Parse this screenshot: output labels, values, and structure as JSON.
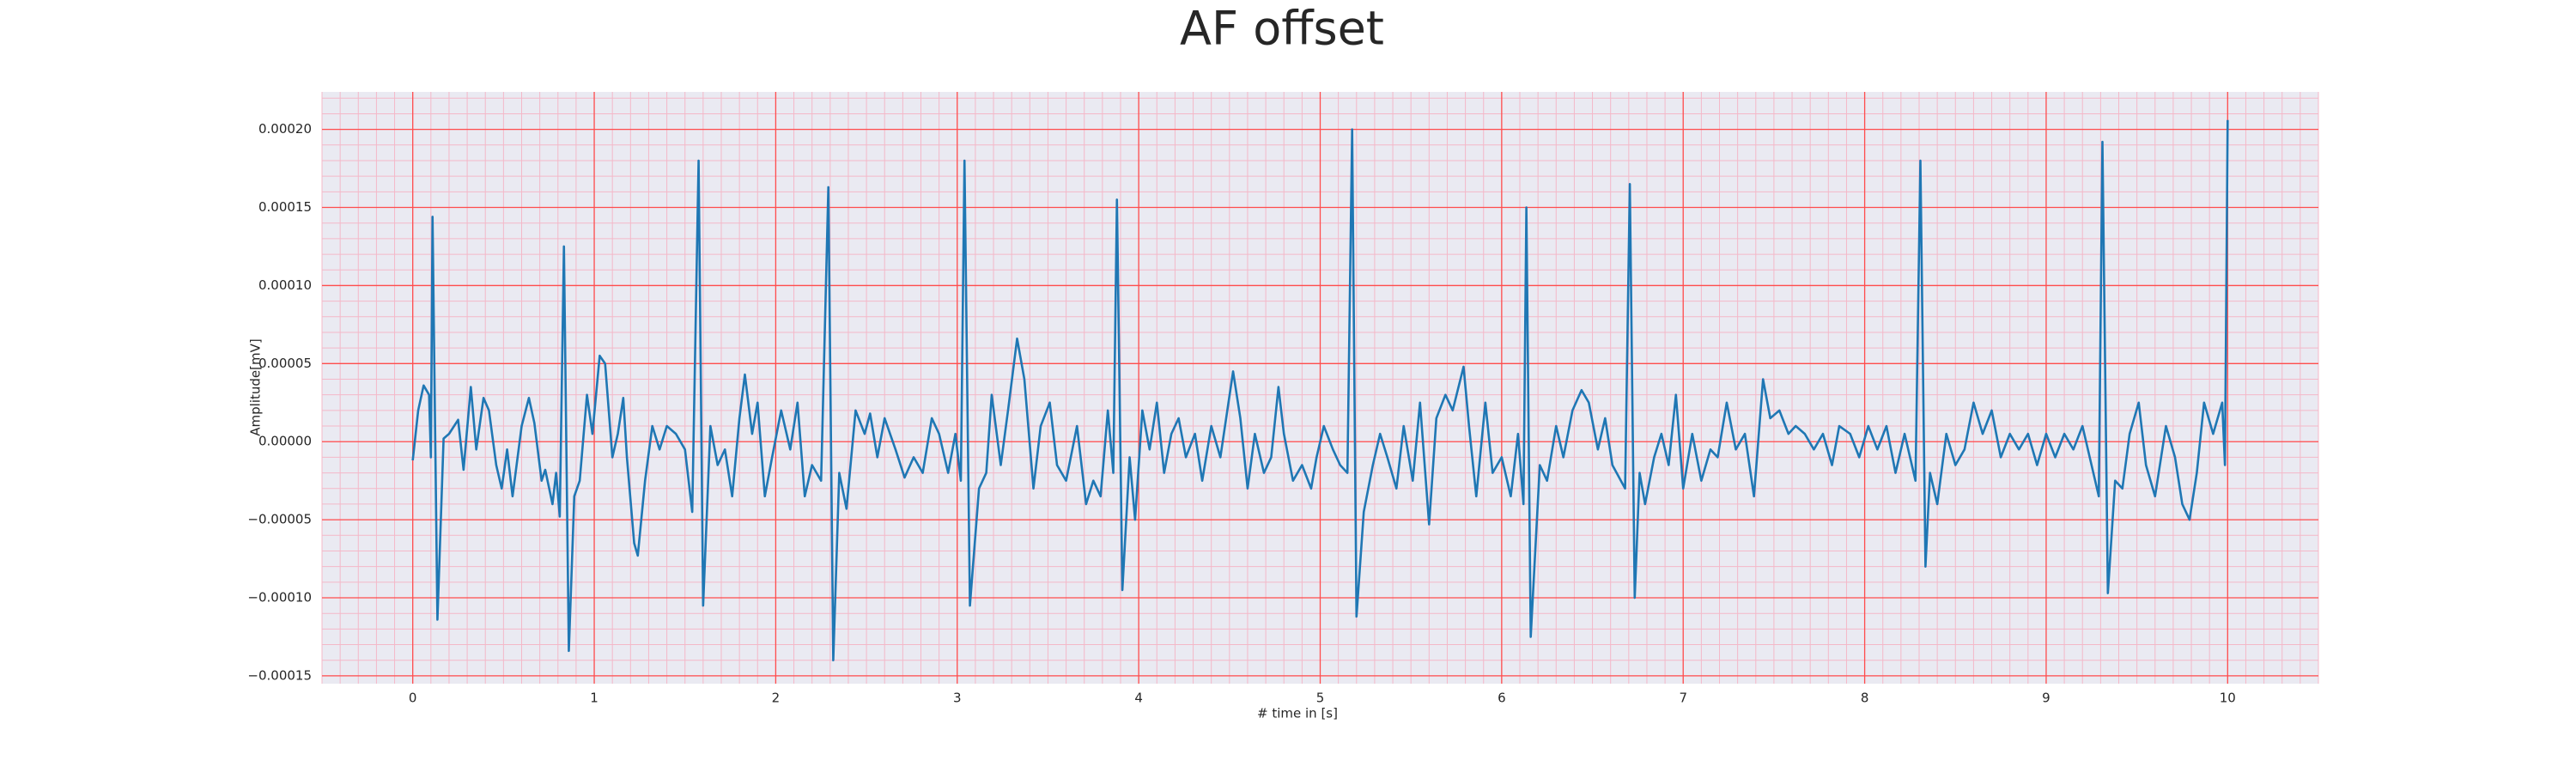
{
  "chart_data": {
    "type": "line",
    "title": "AF offset",
    "x_label": "# time in [s]",
    "y_label": "Amplitude[mV]",
    "color": "#1f77b4",
    "grid": true,
    "grid_color": "#ff4d4d",
    "minor_grid_color": "#f4b8c8",
    "xminor_step": 0.1,
    "yminor_step": 1e-05,
    "xlim": [
      -0.5,
      10.5
    ],
    "ylim": [
      -0.000155,
      0.000224
    ],
    "xticks": [
      0,
      1,
      2,
      3,
      4,
      5,
      6,
      7,
      8,
      9,
      10
    ],
    "yticks": [
      {
        "value": -0.00015,
        "label": "−0.00015"
      },
      {
        "value": -0.0001,
        "label": "−0.00010"
      },
      {
        "value": -5e-05,
        "label": "−0.00005"
      },
      {
        "value": 0,
        "label": "0.00000"
      },
      {
        "value": 5e-05,
        "label": "0.00005"
      },
      {
        "value": 0.0001,
        "label": "0.00010"
      },
      {
        "value": 0.00015,
        "label": "0.00015"
      },
      {
        "value": 0.0002,
        "label": "0.00020"
      }
    ],
    "x": [
      0,
      0.03,
      0.06,
      0.09,
      0.1,
      0.109,
      0.136,
      0.17,
      0.2,
      0.25,
      0.28,
      0.32,
      0.35,
      0.39,
      0.42,
      0.46,
      0.49,
      0.52,
      0.55,
      0.6,
      0.64,
      0.67,
      0.71,
      0.73,
      0.77,
      0.79,
      0.81,
      0.833,
      0.86,
      0.89,
      0.92,
      0.96,
      0.99,
      1.03,
      1.06,
      1.1,
      1.13,
      1.16,
      1.18,
      1.22,
      1.24,
      1.28,
      1.32,
      1.36,
      1.4,
      1.45,
      1.5,
      1.54,
      1.575,
      1.6,
      1.64,
      1.68,
      1.72,
      1.76,
      1.8,
      1.83,
      1.87,
      1.9,
      1.94,
      1.98,
      2.03,
      2.08,
      2.12,
      2.16,
      2.2,
      2.25,
      2.29,
      2.317,
      2.35,
      2.39,
      2.44,
      2.49,
      2.52,
      2.56,
      2.6,
      2.66,
      2.71,
      2.76,
      2.81,
      2.86,
      2.9,
      2.95,
      2.99,
      3.02,
      3.04,
      3.07,
      3.12,
      3.16,
      3.19,
      3.24,
      3.28,
      3.33,
      3.37,
      3.42,
      3.46,
      3.51,
      3.55,
      3.6,
      3.66,
      3.71,
      3.75,
      3.79,
      3.83,
      3.86,
      3.88,
      3.91,
      3.95,
      3.98,
      4.02,
      4.06,
      4.1,
      4.14,
      4.18,
      4.22,
      4.26,
      4.31,
      4.35,
      4.4,
      4.45,
      4.52,
      4.56,
      4.6,
      4.64,
      4.69,
      4.73,
      4.77,
      4.8,
      4.85,
      4.9,
      4.95,
      4.98,
      5.02,
      5.07,
      5.11,
      5.15,
      5.176,
      5.2,
      5.24,
      5.29,
      5.33,
      5.37,
      5.42,
      5.46,
      5.51,
      5.55,
      5.6,
      5.64,
      5.69,
      5.73,
      5.79,
      5.82,
      5.86,
      5.91,
      5.95,
      6.0,
      6.05,
      6.09,
      6.12,
      6.136,
      6.16,
      6.21,
      6.25,
      6.3,
      6.34,
      6.39,
      6.44,
      6.48,
      6.53,
      6.57,
      6.61,
      6.68,
      6.706,
      6.733,
      6.76,
      6.79,
      6.84,
      6.88,
      6.92,
      6.96,
      7.0,
      7.05,
      7.1,
      7.15,
      7.19,
      7.24,
      7.29,
      7.34,
      7.39,
      7.44,
      7.48,
      7.53,
      7.58,
      7.62,
      7.67,
      7.72,
      7.77,
      7.82,
      7.86,
      7.92,
      7.97,
      8.02,
      8.07,
      8.12,
      8.17,
      8.22,
      8.28,
      8.307,
      8.335,
      8.36,
      8.4,
      8.45,
      8.5,
      8.55,
      8.6,
      8.65,
      8.7,
      8.75,
      8.8,
      8.85,
      8.9,
      8.95,
      9.0,
      9.05,
      9.1,
      9.15,
      9.2,
      9.25,
      9.29,
      9.31,
      9.34,
      9.38,
      9.42,
      9.46,
      9.51,
      9.55,
      9.6,
      9.66,
      9.71,
      9.75,
      9.79,
      9.83,
      9.87,
      9.92,
      9.97,
      9.985,
      10.0
    ],
    "values": [
      -1.2e-05,
      2e-05,
      3.6e-05,
      3e-05,
      -1e-05,
      0.000144,
      -0.000114,
      2e-06,
      5e-06,
      1.4e-05,
      -1.8e-05,
      3.5e-05,
      -5e-06,
      2.8e-05,
      2e-05,
      -1.5e-05,
      -3e-05,
      -5e-06,
      -3.5e-05,
      1e-05,
      2.8e-05,
      1.2e-05,
      -2.5e-05,
      -1.8e-05,
      -4e-05,
      -2e-05,
      -4.8e-05,
      0.000125,
      -0.000134,
      -3.5e-05,
      -2.5e-05,
      3e-05,
      5e-06,
      5.5e-05,
      5e-05,
      -1e-05,
      5e-06,
      2.8e-05,
      -1e-05,
      -6.5e-05,
      -7.3e-05,
      -2.5e-05,
      1e-05,
      -5e-06,
      1e-05,
      5e-06,
      -5e-06,
      -4.5e-05,
      0.00018,
      -0.000105,
      1e-05,
      -1.5e-05,
      -5e-06,
      -3.5e-05,
      1.5e-05,
      4.3e-05,
      5e-06,
      2.5e-05,
      -3.5e-05,
      -1e-05,
      2e-05,
      -5e-06,
      2.5e-05,
      -3.5e-05,
      -1.5e-05,
      -2.5e-05,
      0.000163,
      -0.00014,
      -2e-05,
      -4.3e-05,
      2e-05,
      5e-06,
      1.8e-05,
      -1e-05,
      1.5e-05,
      -5e-06,
      -2.3e-05,
      -1e-05,
      -2e-05,
      1.5e-05,
      5e-06,
      -2e-05,
      5e-06,
      -2.5e-05,
      0.00018,
      -0.000105,
      -3e-05,
      -2e-05,
      3e-05,
      -1.5e-05,
      2e-05,
      6.6e-05,
      4e-05,
      -3e-05,
      1e-05,
      2.5e-05,
      -1.5e-05,
      -2.5e-05,
      1e-05,
      -4e-05,
      -2.5e-05,
      -3.5e-05,
      2e-05,
      -2e-05,
      0.000155,
      -9.5e-05,
      -1e-05,
      -5e-05,
      2e-05,
      -5e-06,
      2.5e-05,
      -2e-05,
      5e-06,
      1.5e-05,
      -1e-05,
      5e-06,
      -2.5e-05,
      1e-05,
      -1e-05,
      4.5e-05,
      1.5e-05,
      -3e-05,
      5e-06,
      -2e-05,
      -1e-05,
      3.5e-05,
      5e-06,
      -2.5e-05,
      -1.5e-05,
      -3e-05,
      -1e-05,
      1e-05,
      -5e-06,
      -1.5e-05,
      -2e-05,
      0.0002,
      -0.000112,
      -4.5e-05,
      -1.5e-05,
      5e-06,
      -1e-05,
      -3e-05,
      1e-05,
      -2.5e-05,
      2.5e-05,
      -5.3e-05,
      1.5e-05,
      3e-05,
      2e-05,
      4.8e-05,
      1e-05,
      -3.5e-05,
      2.5e-05,
      -2e-05,
      -1e-05,
      -3.5e-05,
      5e-06,
      -4e-05,
      0.00015,
      -0.000125,
      -1.5e-05,
      -2.5e-05,
      1e-05,
      -1e-05,
      2e-05,
      3.3e-05,
      2.5e-05,
      -5e-06,
      1.5e-05,
      -1.5e-05,
      -3e-05,
      0.000165,
      -0.0001,
      -2e-05,
      -4e-05,
      -1e-05,
      5e-06,
      -1.5e-05,
      3e-05,
      -3e-05,
      5e-06,
      -2.5e-05,
      -5e-06,
      -1e-05,
      2.5e-05,
      -5e-06,
      5e-06,
      -3.5e-05,
      4e-05,
      1.5e-05,
      2e-05,
      5e-06,
      1e-05,
      5e-06,
      -5e-06,
      5e-06,
      -1.5e-05,
      1e-05,
      5e-06,
      -1e-05,
      1e-05,
      -5e-06,
      1e-05,
      -2e-05,
      5e-06,
      -2.5e-05,
      0.00018,
      -8e-05,
      -2e-05,
      -4e-05,
      5e-06,
      -1.5e-05,
      -5e-06,
      2.5e-05,
      5e-06,
      2e-05,
      -1e-05,
      5e-06,
      -5e-06,
      5e-06,
      -1.5e-05,
      5e-06,
      -1e-05,
      5e-06,
      -5e-06,
      1e-05,
      -1.5e-05,
      -3.5e-05,
      0.000192,
      -9.7e-05,
      -2.5e-05,
      -3e-05,
      5e-06,
      2.5e-05,
      -1.5e-05,
      -3.5e-05,
      1e-05,
      -1e-05,
      -4e-05,
      -5e-05,
      -2e-05,
      2.5e-05,
      5e-06,
      2.5e-05,
      -1.5e-05,
      0.000206
    ]
  }
}
